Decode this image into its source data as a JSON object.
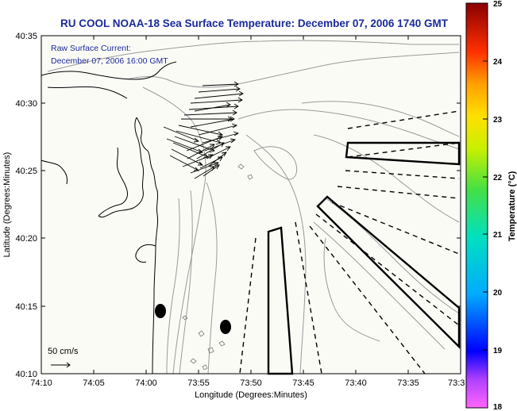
{
  "title": "RU COOL  NOAA-18  Sea Surface Temperature:  December 07, 2006 1740 GMT",
  "annotation": {
    "line1": "Raw Surface Current:",
    "line2": "December 07, 2006 16:00 GMT"
  },
  "scale_label": "50 cm/s",
  "x_axis": {
    "label": "Longitude (Degrees:Minutes)",
    "ticks": [
      "74:10",
      "74:05",
      "74:00",
      "73:55",
      "73:50",
      "73:45",
      "73:40",
      "73:35",
      "73:3"
    ]
  },
  "y_axis": {
    "label": "Latitude (Degrees:Minutes)",
    "ticks": [
      "40:35",
      "40:30",
      "40:25",
      "40:20",
      "40:15",
      "40:10"
    ]
  },
  "colorbar": {
    "label": "Temperature (°C)",
    "ticks": [
      "25",
      "24",
      "23",
      "22",
      "21",
      "20",
      "19",
      "18"
    ],
    "range": [
      18,
      25
    ]
  },
  "colors": {
    "title": "#1a2a9a",
    "land": "#fbfbf6",
    "contour": "#999999",
    "coast": "#000000"
  }
}
